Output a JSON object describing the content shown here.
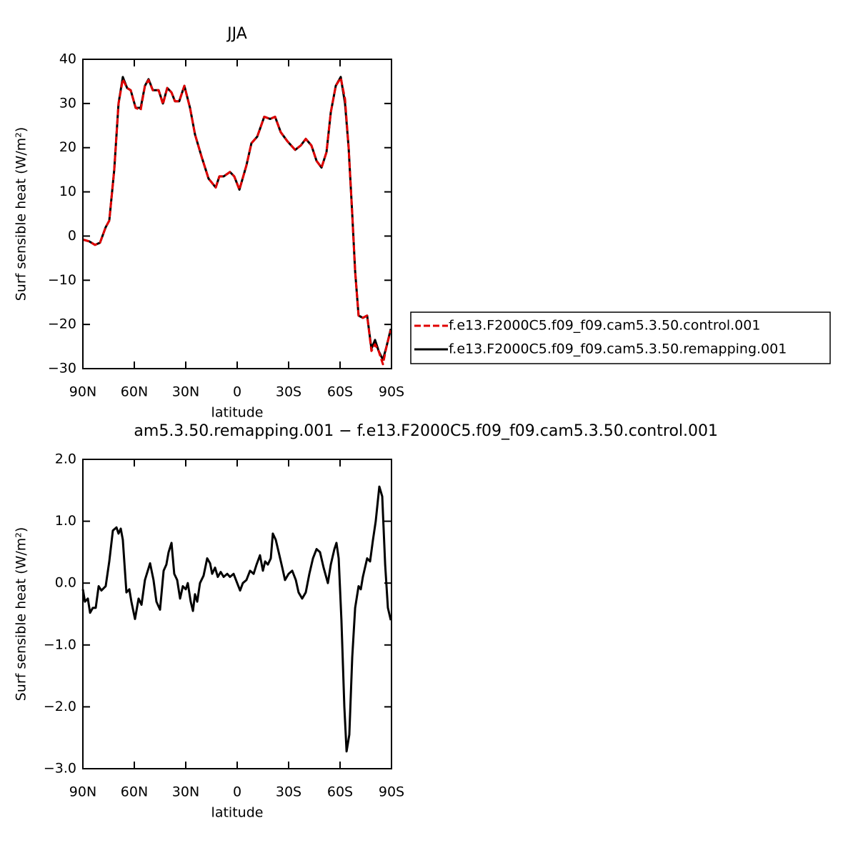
{
  "chart_data": [
    {
      "type": "line",
      "title": "JJA",
      "xlabel": "latitude",
      "ylabel": "Surf sensible heat (W/m²)",
      "x": [
        90,
        86.3,
        82.9,
        80,
        76.7,
        74.6,
        71.7,
        69.2,
        66.7,
        64.2,
        62.1,
        59.2,
        56.3,
        53.8,
        51.7,
        49.2,
        45.8,
        43.3,
        40.8,
        38.3,
        36.3,
        33.8,
        30.8,
        27.5,
        24.6,
        20.8,
        16.7,
        12.5,
        10.4,
        7.9,
        4.2,
        1.7,
        -1.3,
        -5.4,
        -8.3,
        -11.7,
        -15.8,
        -19.2,
        -22.1,
        -25.4,
        -29.2,
        -33.8,
        -37.1,
        -40,
        -43.3,
        -46.3,
        -49.2,
        -52.1,
        -54.6,
        -57.5,
        -60.4,
        -62.9,
        -65,
        -67.1,
        -68.8,
        -70.8,
        -73.3,
        -75.8,
        -78.3,
        -80.4,
        -82.5,
        -85,
        -87.1,
        -89.6
      ],
      "series": [
        {
          "name": "f.e13.F2000C5.f09_f09.cam5.3.50.control.001",
          "color": "#e00000",
          "linestyle": "dashed",
          "values": [
            -0.8,
            -1.2,
            -2,
            -1.5,
            2,
            3.5,
            15,
            30,
            35.5,
            33.5,
            33,
            29,
            28.5,
            34,
            35.3,
            33,
            33,
            29.8,
            33.5,
            32.5,
            30.5,
            30.5,
            34,
            29,
            23,
            18,
            13,
            11,
            13.5,
            13.5,
            14.5,
            13.5,
            10.5,
            16,
            21,
            22.5,
            27,
            26.5,
            27,
            23.5,
            21.5,
            19.5,
            20.5,
            22,
            20.5,
            17,
            15.5,
            19,
            28,
            34,
            35.8,
            31,
            20,
            5,
            -8,
            -18,
            -18.5,
            -18,
            -26,
            -24.5,
            -26,
            -29,
            -25,
            -21.3
          ]
        },
        {
          "name": "f.e13.F2000C5.f09_f09.cam5.3.50.remapping.001",
          "color": "#000000",
          "linestyle": "solid",
          "values": [
            -0.8,
            -1.2,
            -2,
            -1.5,
            2,
            3.5,
            15,
            30,
            36,
            33.5,
            33,
            29,
            29,
            34,
            35.5,
            33,
            33,
            30,
            33.5,
            32.5,
            30.5,
            30.5,
            34,
            29,
            23,
            18,
            13,
            11,
            13.5,
            13.5,
            14.5,
            13.5,
            10.5,
            16,
            21,
            22.5,
            27,
            26.5,
            27,
            23.5,
            21.5,
            19.5,
            20.5,
            22,
            20.5,
            17,
            15.5,
            19,
            28,
            34,
            36,
            30,
            20,
            5,
            -8,
            -18,
            -18.5,
            -18,
            -25.5,
            -23.5,
            -26,
            -28,
            -25,
            -21
          ]
        }
      ],
      "xlim": [
        90,
        -90
      ],
      "xticks": [
        {
          "value": 90,
          "label": "90N"
        },
        {
          "value": 60,
          "label": "60N"
        },
        {
          "value": 30,
          "label": "30N"
        },
        0,
        {
          "value": -30,
          "label": "30S"
        },
        {
          "value": -60,
          "label": "60S"
        },
        {
          "value": -90,
          "label": "90S"
        }
      ],
      "ylim": [
        -30,
        40
      ],
      "yticks": [
        {
          "value": -30,
          "label": "−30"
        },
        {
          "value": -20,
          "label": "−20"
        },
        {
          "value": -10,
          "label": "−10"
        },
        0,
        10,
        20,
        30,
        40
      ],
      "legend": "right"
    },
    {
      "type": "line",
      "title": "am5.3.50.remapping.001 − f.e13.F2000C5.f09_f09.cam5.3.50.control.001",
      "xlabel": "latitude",
      "ylabel": "Surf sensible heat (W/m²)",
      "x": [
        90,
        88.8,
        87.1,
        85.8,
        84.2,
        82.5,
        80.8,
        79.2,
        76.7,
        74.6,
        72.5,
        70.4,
        69.2,
        67.9,
        66.7,
        64.6,
        62.9,
        61.7,
        59.6,
        57.5,
        55.8,
        53.8,
        50.8,
        48.8,
        47.1,
        45,
        42.9,
        41.3,
        40,
        38.3,
        36.7,
        35,
        33.3,
        31.7,
        30,
        28.8,
        27.1,
        25.8,
        24.6,
        23.3,
        21.7,
        19.6,
        17.5,
        15.8,
        14.6,
        12.9,
        11.3,
        9.6,
        7.9,
        5.8,
        4.2,
        2.1,
        0,
        -1.7,
        -3.3,
        -5.4,
        -7.5,
        -9.6,
        -11.3,
        -13.3,
        -15,
        -16.3,
        -17.9,
        -19.6,
        -20.8,
        -22.5,
        -24.2,
        -26.3,
        -27.9,
        -30,
        -32.1,
        -34.2,
        -35.8,
        -37.9,
        -40,
        -42.1,
        -44.2,
        -46.3,
        -48.3,
        -50.4,
        -52.9,
        -54.6,
        -56.7,
        -57.9,
        -59.2,
        -60.8,
        -62.5,
        -63.8,
        -65.4,
        -67.1,
        -68.8,
        -70.8,
        -72.1,
        -73.3,
        -75.8,
        -77.5,
        -79.2,
        -80.8,
        -82.9,
        -84.6,
        -86.3,
        -87.9,
        -89.6
      ],
      "series": [
        {
          "color": "#000000",
          "linestyle": "solid",
          "values": [
            -0.1,
            -0.3,
            -0.25,
            -0.48,
            -0.4,
            -0.4,
            -0.05,
            -0.12,
            -0.05,
            0.35,
            0.85,
            0.9,
            0.8,
            0.88,
            0.7,
            -0.15,
            -0.1,
            -0.3,
            -0.58,
            -0.25,
            -0.35,
            0.05,
            0.32,
            0.05,
            -0.3,
            -0.43,
            0.2,
            0.3,
            0.5,
            0.65,
            0.15,
            0.05,
            -0.25,
            -0.05,
            -0.1,
            0,
            -0.3,
            -0.45,
            -0.18,
            -0.3,
            0,
            0.12,
            0.4,
            0.32,
            0.15,
            0.25,
            0.1,
            0.18,
            0.1,
            0.15,
            0.1,
            0.15,
            0,
            -0.12,
            0,
            0.05,
            0.2,
            0.15,
            0.3,
            0.45,
            0.2,
            0.35,
            0.3,
            0.4,
            0.8,
            0.7,
            0.5,
            0.25,
            0.05,
            0.15,
            0.2,
            0.05,
            -0.15,
            -0.25,
            -0.15,
            0.15,
            0.4,
            0.55,
            0.5,
            0.25,
            0,
            0.3,
            0.55,
            0.65,
            0.4,
            -0.6,
            -2,
            -2.72,
            -2.45,
            -1.2,
            -0.4,
            -0.05,
            -0.1,
            0.1,
            0.4,
            0.35,
            0.7,
            1,
            1.56,
            1.4,
            0.3,
            -0.4,
            -0.6
          ]
        }
      ],
      "xlim": [
        90,
        -90
      ],
      "xticks": [
        {
          "value": 90,
          "label": "90N"
        },
        {
          "value": 60,
          "label": "60N"
        },
        {
          "value": 30,
          "label": "30N"
        },
        0,
        {
          "value": -30,
          "label": "30S"
        },
        {
          "value": -60,
          "label": "60S"
        },
        {
          "value": -90,
          "label": "90S"
        }
      ],
      "ylim": [
        -3,
        2
      ],
      "yticks": [
        {
          "value": -3,
          "label": "−3.0"
        },
        {
          "value": -2,
          "label": "−2.0"
        },
        {
          "value": -1,
          "label": "−1.0"
        },
        {
          "value": 0,
          "label": "0.0"
        },
        {
          "value": 1,
          "label": "1.0"
        },
        {
          "value": 2,
          "label": "2.0"
        }
      ]
    }
  ]
}
